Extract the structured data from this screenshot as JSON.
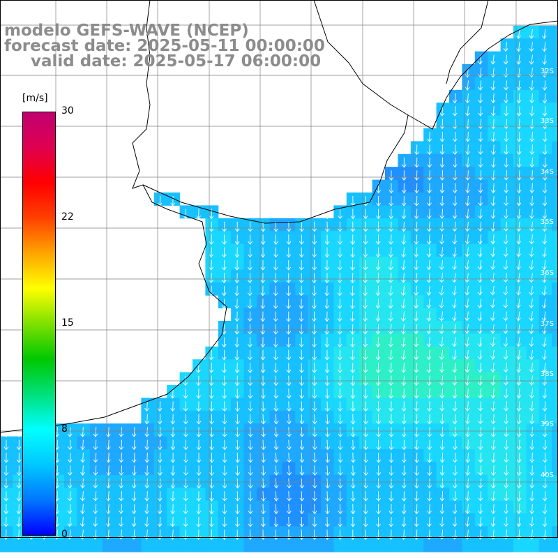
{
  "title": {
    "model": "modelo GEFS-WAVE (NCEP)",
    "forecast": "forecast date: 2025-05-11 00:00:00",
    "valid": "valid date: 2025-05-17 06:00:00"
  },
  "colorbar": {
    "unit": "[m/s]",
    "ticks": [
      "30",
      "22",
      "15",
      "8",
      "0"
    ],
    "min": 0,
    "max": 30,
    "colors": [
      "#0000ff",
      "#0077ff",
      "#00c8ff",
      "#00ffff",
      "#00e07a",
      "#00c800",
      "#7fe000",
      "#ffff00",
      "#ffa500",
      "#ff4000",
      "#ff0000",
      "#e00050",
      "#c00070"
    ]
  },
  "lat_labels": [
    "32S",
    "33S",
    "34S",
    "35S",
    "36S",
    "37S",
    "38S",
    "39S",
    "40S"
  ],
  "field": {
    "variable": "wind speed and direction",
    "unit": "m/s",
    "typical_speed_range": [
      5,
      12
    ],
    "dominant_direction": "from north to south"
  },
  "colors": {
    "land": "#ffffff",
    "coast": "#000000",
    "grid": "#7f7f7f",
    "arrow": "#ffffff",
    "title": "#8c8c8c"
  }
}
